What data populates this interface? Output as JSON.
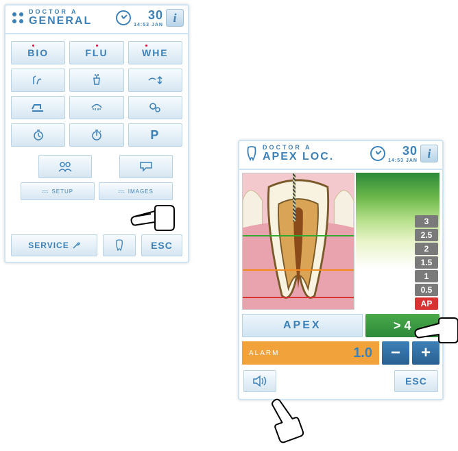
{
  "header": {
    "doctor_line": "DOCTOR A",
    "title_general": "GENERAL",
    "title_apex": "APEX LOC.",
    "day": "30",
    "time_date": "14:53 JAN"
  },
  "main_buttons": {
    "r1c1": "BIO",
    "r1c2": "FLU",
    "r1c3": "WHE"
  },
  "setup": {
    "left": "SETUP",
    "right": "IMAGES"
  },
  "bottom": {
    "service": "SERVICE",
    "esc": "ESC"
  },
  "apex": {
    "label": "APEX",
    "value": "> 4",
    "alarm_label": "ALARM",
    "alarm_value": "1.0",
    "esc": "ESC",
    "scale": [
      {
        "text": "3",
        "bg": "#7a7a7a"
      },
      {
        "text": "2.5",
        "bg": "#7a7a7a"
      },
      {
        "text": "2",
        "bg": "#7a7a7a"
      },
      {
        "text": "1.5",
        "bg": "#7a7a7a"
      },
      {
        "text": "1",
        "bg": "#7a7a7a"
      },
      {
        "text": "0.5",
        "bg": "#7a7a7a"
      },
      {
        "text": "AP",
        "bg": "#d83232"
      }
    ]
  },
  "colors": {
    "accent": "#3c80b8",
    "green": "#2c8a3a",
    "orange": "#f2a23a",
    "red": "#d83232"
  }
}
